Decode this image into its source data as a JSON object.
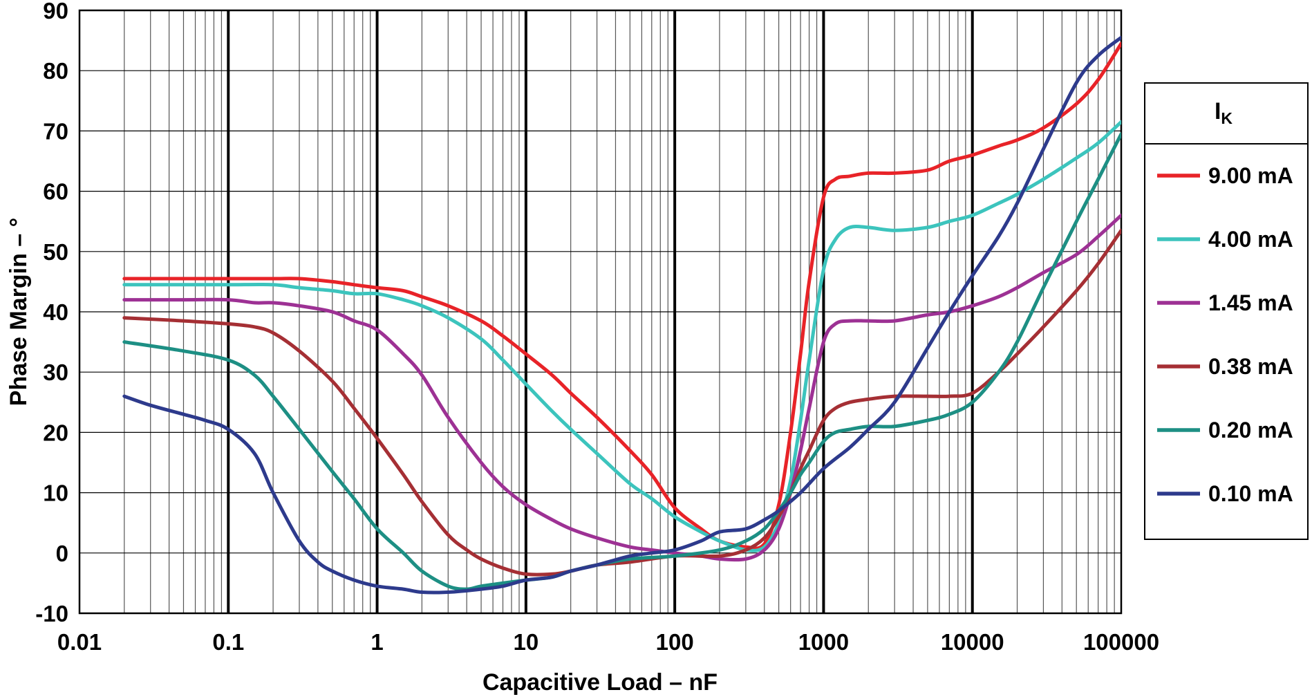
{
  "chart_data": {
    "type": "line",
    "title": "",
    "xlabel": "Capacitive Load – nF",
    "ylabel": "Phase Margin – °",
    "x_scale": "log",
    "xlim": [
      0.01,
      100000
    ],
    "ylim": [
      -10,
      90
    ],
    "grid": true,
    "x_ticks": [
      0.01,
      0.1,
      1,
      10,
      100,
      1000,
      10000,
      100000
    ],
    "x_tick_labels": [
      "0.01",
      "0.1",
      "1",
      "10",
      "100",
      "1000",
      "10000",
      "100000"
    ],
    "y_ticks": [
      -10,
      0,
      10,
      20,
      30,
      40,
      50,
      60,
      70,
      80,
      90
    ],
    "y_tick_labels": [
      "-10",
      "0",
      "10",
      "20",
      "30",
      "40",
      "50",
      "60",
      "70",
      "80",
      "90"
    ],
    "legend": {
      "position": "right",
      "title_main": "I",
      "title_sub": "K"
    },
    "series": [
      {
        "name": "9.00 mA",
        "color": "#e82328",
        "x": [
          0.02,
          0.05,
          0.1,
          0.2,
          0.3,
          0.5,
          0.7,
          1,
          1.5,
          2,
          3,
          5,
          7,
          10,
          15,
          20,
          30,
          50,
          70,
          100,
          150,
          200,
          300,
          400,
          500,
          600,
          700,
          800,
          1000,
          1200,
          1500,
          2000,
          3000,
          5000,
          7000,
          10000,
          15000,
          20000,
          30000,
          50000,
          70000,
          100000
        ],
        "y": [
          45.5,
          45.5,
          45.5,
          45.5,
          45.5,
          45,
          44.5,
          44,
          43.5,
          42.5,
          41,
          38.5,
          36,
          33,
          29.5,
          26.5,
          22.5,
          17,
          13,
          7.5,
          4,
          2,
          1,
          1.5,
          8,
          20,
          33,
          45,
          59,
          62,
          62.5,
          63,
          63,
          63.5,
          65,
          66,
          67.5,
          68.5,
          70.5,
          74.5,
          78.5,
          84.5
        ]
      },
      {
        "name": "4.00 mA",
        "color": "#3cc4bd",
        "x": [
          0.02,
          0.05,
          0.1,
          0.2,
          0.3,
          0.5,
          0.7,
          1,
          1.5,
          2,
          3,
          5,
          7,
          10,
          15,
          20,
          30,
          50,
          70,
          100,
          150,
          200,
          300,
          400,
          500,
          600,
          700,
          800,
          1000,
          1200,
          1500,
          2000,
          3000,
          5000,
          7000,
          10000,
          15000,
          20000,
          30000,
          50000,
          70000,
          100000
        ],
        "y": [
          44.5,
          44.5,
          44.5,
          44.5,
          44,
          43.5,
          43,
          43,
          42,
          41,
          39,
          35.5,
          32,
          28,
          23.5,
          20.5,
          16.5,
          11.5,
          9,
          6,
          3.5,
          2,
          0.5,
          1,
          5,
          12,
          22,
          32,
          47,
          52,
          54,
          54,
          53.5,
          54,
          55,
          56,
          58,
          59.5,
          62,
          65.5,
          68,
          71.5
        ]
      },
      {
        "name": "1.45 mA",
        "color": "#9d3194",
        "x": [
          0.02,
          0.05,
          0.1,
          0.15,
          0.2,
          0.3,
          0.5,
          0.7,
          1,
          1.5,
          2,
          3,
          5,
          7,
          10,
          15,
          20,
          30,
          50,
          70,
          100,
          150,
          200,
          300,
          400,
          500,
          600,
          700,
          800,
          1000,
          1200,
          1500,
          2000,
          3000,
          5000,
          7000,
          10000,
          15000,
          20000,
          30000,
          50000,
          70000,
          100000
        ],
        "y": [
          42,
          42,
          42,
          41.5,
          41.5,
          41,
          40,
          38.5,
          37,
          33,
          29.5,
          22.5,
          15,
          11,
          8,
          5.5,
          4,
          2.5,
          1,
          0.5,
          0,
          -0.5,
          -1,
          -1,
          0.5,
          4,
          10,
          17,
          24,
          35,
          38,
          38.5,
          38.5,
          38.5,
          39.5,
          40,
          41,
          42.5,
          44,
          46.5,
          49.5,
          52.5,
          56
        ]
      },
      {
        "name": "0.38 mA",
        "color": "#a52f34",
        "x": [
          0.02,
          0.05,
          0.1,
          0.15,
          0.2,
          0.3,
          0.5,
          0.7,
          1,
          1.5,
          2,
          3,
          4,
          5,
          7,
          10,
          15,
          20,
          30,
          50,
          100,
          200,
          300,
          400,
          500,
          600,
          700,
          800,
          1000,
          1200,
          1500,
          2000,
          3000,
          5000,
          7000,
          10000,
          15000,
          20000,
          30000,
          50000,
          70000,
          100000
        ],
        "y": [
          39,
          38.5,
          38,
          37.5,
          36.5,
          33.5,
          28.5,
          24,
          19,
          13,
          8.5,
          3,
          0.5,
          -1,
          -2.5,
          -3.5,
          -3.5,
          -3,
          -2,
          -1.5,
          -0.5,
          -0.5,
          0.5,
          2.5,
          6,
          10,
          14,
          17,
          22,
          24,
          25,
          25.5,
          26,
          26,
          26,
          26.5,
          30,
          33,
          37.5,
          43.5,
          48,
          53.5
        ]
      },
      {
        "name": "0.20 mA",
        "color": "#1d8f84",
        "x": [
          0.02,
          0.05,
          0.1,
          0.15,
          0.2,
          0.3,
          0.5,
          0.7,
          1,
          1.5,
          2,
          3,
          4,
          5,
          7,
          10,
          15,
          20,
          30,
          50,
          100,
          200,
          300,
          400,
          500,
          600,
          700,
          800,
          1000,
          1200,
          1500,
          2000,
          3000,
          5000,
          7000,
          10000,
          15000,
          20000,
          30000,
          50000,
          70000,
          100000
        ],
        "y": [
          35,
          33.5,
          32,
          29.5,
          26,
          20.5,
          13.5,
          9,
          4,
          0,
          -3,
          -5.5,
          -6,
          -5.5,
          -5,
          -4.5,
          -4,
          -3,
          -2,
          -1,
          -0.5,
          0.5,
          2,
          4,
          7,
          10,
          13,
          15,
          18.5,
          20,
          20.5,
          21,
          21,
          22,
          23,
          25,
          30,
          35,
          44,
          55,
          62,
          69.5
        ]
      },
      {
        "name": "0.10 mA",
        "color": "#2d3a8c",
        "x": [
          0.02,
          0.03,
          0.05,
          0.07,
          0.1,
          0.15,
          0.2,
          0.3,
          0.4,
          0.5,
          0.7,
          1,
          1.5,
          2,
          3,
          5,
          7,
          10,
          15,
          20,
          30,
          50,
          70,
          100,
          150,
          200,
          300,
          400,
          500,
          700,
          1000,
          1500,
          2000,
          3000,
          5000,
          7000,
          10000,
          15000,
          20000,
          30000,
          50000,
          70000,
          100000
        ],
        "y": [
          26,
          24.5,
          23,
          22,
          20.5,
          16.5,
          10,
          2,
          -1.5,
          -3,
          -4.5,
          -5.5,
          -6,
          -6.5,
          -6.5,
          -6,
          -5.5,
          -4.5,
          -4,
          -3,
          -2,
          -0.5,
          0,
          0.5,
          2,
          3.5,
          4,
          5.5,
          7,
          10,
          14,
          17.5,
          20.5,
          25,
          34,
          40,
          46,
          52.5,
          58,
          67,
          78,
          82.5,
          85.5
        ]
      }
    ],
    "style": {
      "curve_width": 5,
      "major_grid_color": "#000000",
      "minor_grid_color": "#555555",
      "background": "#ffffff"
    }
  }
}
